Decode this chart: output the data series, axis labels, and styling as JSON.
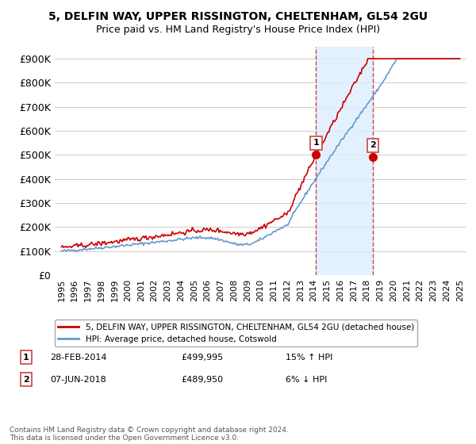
{
  "title": "5, DELFIN WAY, UPPER RISSINGTON, CHELTENHAM, GL54 2GU",
  "subtitle": "Price paid vs. HM Land Registry's House Price Index (HPI)",
  "ylabel_ticks": [
    "£0",
    "£100K",
    "£200K",
    "£300K",
    "£400K",
    "£500K",
    "£600K",
    "£700K",
    "£800K",
    "£900K"
  ],
  "ytick_values": [
    0,
    100000,
    200000,
    300000,
    400000,
    500000,
    600000,
    700000,
    800000,
    900000
  ],
  "ylim": [
    0,
    950000
  ],
  "xlim_start": 1994.5,
  "xlim_end": 2025.5,
  "legend_line1": "5, DELFIN WAY, UPPER RISSINGTON, CHELTENHAM, GL54 2GU (detached house)",
  "legend_line2": "HPI: Average price, detached house, Cotswold",
  "sale1_label": "1",
  "sale1_date": "28-FEB-2014",
  "sale1_price": "£499,995",
  "sale1_hpi": "15% ↑ HPI",
  "sale2_label": "2",
  "sale2_date": "07-JUN-2018",
  "sale2_price": "£489,950",
  "sale2_hpi": "6% ↓ HPI",
  "footer": "Contains HM Land Registry data © Crown copyright and database right 2024.\nThis data is licensed under the Open Government Licence v3.0.",
  "red_color": "#cc0000",
  "blue_color": "#6699cc",
  "shaded_color": "#ddeeff",
  "vline_color": "#cc4444",
  "marker1_x": 2014.17,
  "marker1_y": 499995,
  "marker2_x": 2018.44,
  "marker2_y": 489950,
  "grid_color": "#cccccc",
  "title_fontsize": 10,
  "subtitle_fontsize": 9
}
